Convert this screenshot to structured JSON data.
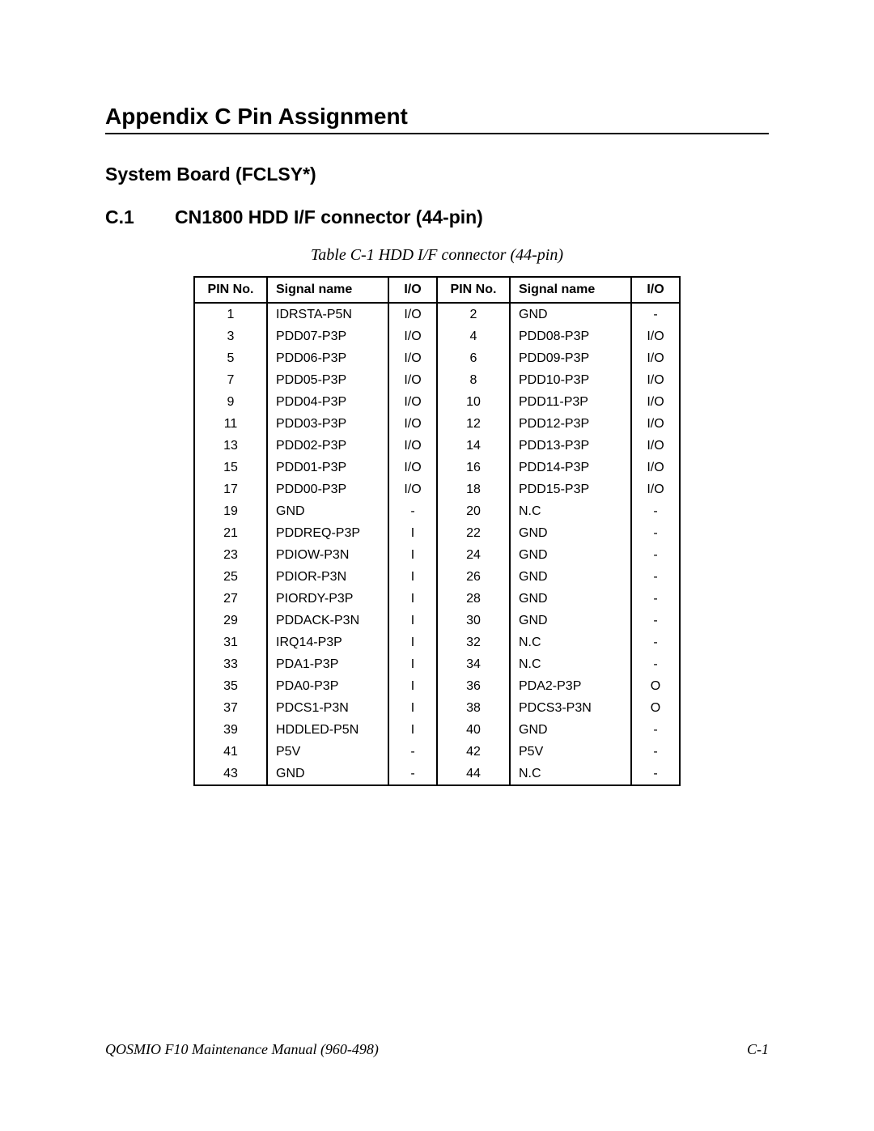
{
  "heading1": "Appendix C    Pin Assignment",
  "heading2": "System Board (FCLSY*)",
  "heading3_num": "C.1",
  "heading3_title": "CN1800  HDD I/F connector (44-pin)",
  "table_caption": "Table C-1  HDD I/F connector (44-pin)",
  "columns": [
    "PIN No.",
    "Signal name",
    "I/O",
    "PIN No.",
    "Signal name",
    "I/O"
  ],
  "rows": [
    [
      "1",
      "IDRSTA-P5N",
      "I/O",
      "2",
      "GND",
      "-"
    ],
    [
      "3",
      "PDD07-P3P",
      "I/O",
      "4",
      "PDD08-P3P",
      "I/O"
    ],
    [
      "5",
      "PDD06-P3P",
      "I/O",
      "6",
      "PDD09-P3P",
      "I/O"
    ],
    [
      "7",
      "PDD05-P3P",
      "I/O",
      "8",
      "PDD10-P3P",
      "I/O"
    ],
    [
      "9",
      "PDD04-P3P",
      "I/O",
      "10",
      "PDD11-P3P",
      "I/O"
    ],
    [
      "11",
      "PDD03-P3P",
      "I/O",
      "12",
      "PDD12-P3P",
      "I/O"
    ],
    [
      "13",
      "PDD02-P3P",
      "I/O",
      "14",
      "PDD13-P3P",
      "I/O"
    ],
    [
      "15",
      "PDD01-P3P",
      "I/O",
      "16",
      "PDD14-P3P",
      "I/O"
    ],
    [
      "17",
      "PDD00-P3P",
      "I/O",
      "18",
      "PDD15-P3P",
      "I/O"
    ],
    [
      "19",
      "GND",
      "-",
      "20",
      "N.C",
      "-"
    ],
    [
      "21",
      "PDDREQ-P3P",
      "I",
      "22",
      "GND",
      "-"
    ],
    [
      "23",
      "PDIOW-P3N",
      "I",
      "24",
      "GND",
      "-"
    ],
    [
      "25",
      "PDIOR-P3N",
      "I",
      "26",
      "GND",
      "-"
    ],
    [
      "27",
      "PIORDY-P3P",
      "I",
      "28",
      "GND",
      "-"
    ],
    [
      "29",
      "PDDACK-P3N",
      "I",
      "30",
      "GND",
      "-"
    ],
    [
      "31",
      "IRQ14-P3P",
      "I",
      "32",
      "N.C",
      "-"
    ],
    [
      "33",
      "PDA1-P3P",
      "I",
      "34",
      "N.C",
      "-"
    ],
    [
      "35",
      "PDA0-P3P",
      "I",
      "36",
      "PDA2-P3P",
      "O"
    ],
    [
      "37",
      "PDCS1-P3N",
      "I",
      "38",
      "PDCS3-P3N",
      "O"
    ],
    [
      "39",
      "HDDLED-P5N",
      "I",
      "40",
      "GND",
      "-"
    ],
    [
      "41",
      "P5V",
      "-",
      "42",
      "P5V",
      "-"
    ],
    [
      "43",
      "GND",
      "-",
      "44",
      "N.C",
      "-"
    ]
  ],
  "footer_left": "QOSMIO F10  Maintenance Manual (960-498)",
  "footer_right": "C-1"
}
